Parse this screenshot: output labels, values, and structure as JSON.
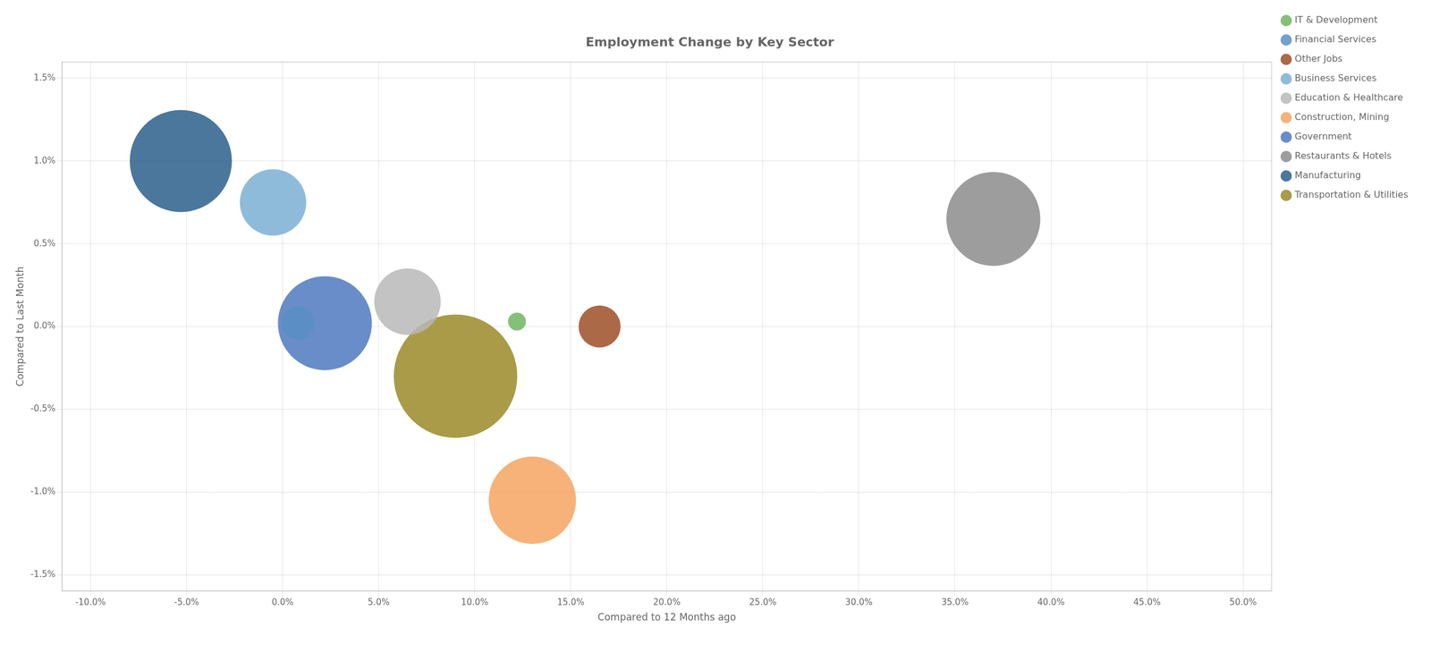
{
  "chart_data": {
    "type": "bubble",
    "title": "Employment Change by Key Sector",
    "xlabel": "Compared to 12 Months ago",
    "ylabel": "Compared to Last Month",
    "xlim": [
      -0.115,
      0.515
    ],
    "ylim": [
      -0.016,
      0.016
    ],
    "xticks": [
      {
        "value": -0.1,
        "label": "-10.0%"
      },
      {
        "value": -0.05,
        "label": "-5.0%"
      },
      {
        "value": 0.0,
        "label": "0.0%"
      },
      {
        "value": 0.05,
        "label": "5.0%"
      },
      {
        "value": 0.1,
        "label": "10.0%"
      },
      {
        "value": 0.15,
        "label": "15.0%"
      },
      {
        "value": 0.2,
        "label": "20.0%"
      },
      {
        "value": 0.25,
        "label": "25.0%"
      },
      {
        "value": 0.3,
        "label": "30.0%"
      },
      {
        "value": 0.35,
        "label": "35.0%"
      },
      {
        "value": 0.4,
        "label": "40.0%"
      },
      {
        "value": 0.45,
        "label": "45.0%"
      },
      {
        "value": 0.5,
        "label": "50.0%"
      }
    ],
    "yticks": [
      {
        "value": -0.015,
        "label": "-1.5%"
      },
      {
        "value": -0.01,
        "label": "-1.0%"
      },
      {
        "value": -0.005,
        "label": "-0.5%"
      },
      {
        "value": 0.0,
        "label": "0.0%"
      },
      {
        "value": 0.005,
        "label": "0.5%"
      },
      {
        "value": 0.01,
        "label": "1.0%"
      },
      {
        "value": 0.015,
        "label": "1.5%"
      }
    ],
    "grid": true,
    "legend": "right",
    "series": [
      {
        "name": "Business Services",
        "color": "#7bafd4",
        "x": [
          -0.005
        ],
        "y": [
          0.0075
        ],
        "size": [
          5500
        ]
      },
      {
        "name": "Construction, Mining",
        "color": "#f4a460",
        "x": [
          0.13
        ],
        "y": [
          -0.0105
        ],
        "size": [
          9500
        ]
      },
      {
        "name": "Education & Healthcare",
        "color": "#b8b8b8",
        "x": [
          0.065
        ],
        "y": [
          0.0015
        ],
        "size": [
          5500
        ]
      },
      {
        "name": "Financial Services",
        "color": "#5b8fc7",
        "x": [
          0.008
        ],
        "y": [
          0.0002
        ],
        "size": [
          1400
        ]
      },
      {
        "name": "Government",
        "color": "#4f79c0",
        "x": [
          0.022
        ],
        "y": [
          0.0002
        ],
        "size": [
          11000
        ]
      },
      {
        "name": "IT & Development",
        "color": "#70b560",
        "x": [
          0.122
        ],
        "y": [
          0.0003
        ],
        "size": [
          400
        ]
      },
      {
        "name": "Manufacturing",
        "color": "#2c5f8c",
        "x": [
          -0.053
        ],
        "y": [
          0.01
        ],
        "size": [
          13000
        ]
      },
      {
        "name": "Other Jobs",
        "color": "#9e4f28",
        "x": [
          0.165
        ],
        "y": [
          0.0
        ],
        "size": [
          2200
        ]
      },
      {
        "name": "Restaurants & Hotels",
        "color": "#8c8c8c",
        "x": [
          0.37
        ],
        "y": [
          0.0065
        ],
        "size": [
          11000
        ]
      },
      {
        "name": "Transportation & Utilities",
        "color": "#9a8a28",
        "x": [
          0.09
        ],
        "y": [
          -0.003
        ],
        "size": [
          19000
        ]
      }
    ]
  }
}
